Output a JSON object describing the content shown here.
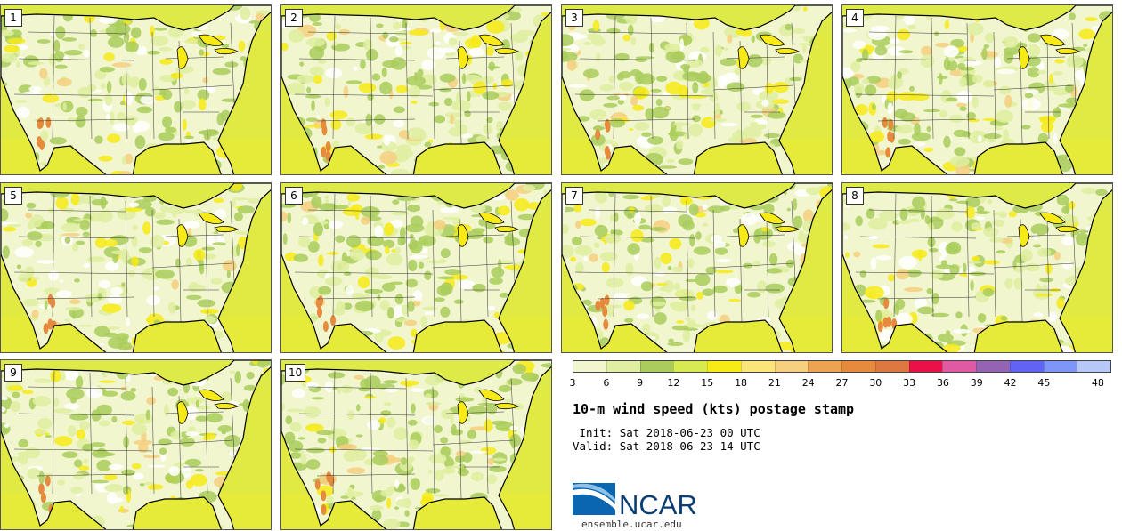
{
  "title": "10-m wind speed (kts) postage stamp",
  "init_label": " Init:",
  "init_value": "Sat 2018-06-23 00 UTC",
  "valid_label": "Valid:",
  "valid_value": "Sat 2018-06-23 14 UTC",
  "members": [
    "1",
    "2",
    "3",
    "4",
    "5",
    "6",
    "7",
    "8",
    "9",
    "10"
  ],
  "colorbar": {
    "ticks": [
      "3",
      "6",
      "9",
      "12",
      "15",
      "18",
      "21",
      "24",
      "27",
      "30",
      "33",
      "36",
      "39",
      "42",
      "45",
      "48"
    ],
    "colors": [
      "#f1f6cf",
      "#dfeea0",
      "#a9cc5c",
      "#d8ea52",
      "#f7ea16",
      "#fbe57a",
      "#f6cf7f",
      "#eca352",
      "#e68a3e",
      "#dd7841",
      "#ea1048",
      "#e05aa2",
      "#9464b2",
      "#6064f5",
      "#7d96f7",
      "#b6c8f7"
    ]
  },
  "logo": {
    "text": "NCAR",
    "url": "ensemble.ucar.edu"
  }
}
